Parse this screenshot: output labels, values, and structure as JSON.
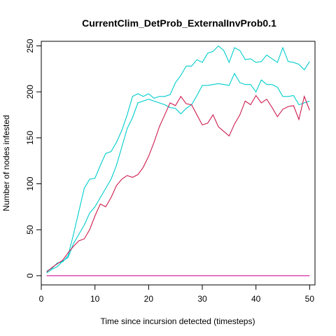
{
  "chart_data": {
    "type": "line",
    "title": "CurrentClim_DetProb_ExternalInvProb0.1",
    "xlabel": "Time since incursion detected (timesteps)",
    "ylabel": "Number of nodes infested",
    "xlim": [
      0,
      51
    ],
    "ylim": [
      -10,
      255
    ],
    "xticks": [
      0,
      10,
      20,
      30,
      40,
      50
    ],
    "yticks": [
      0,
      50,
      100,
      150,
      200,
      250
    ],
    "grid": false,
    "legend": "none",
    "x": [
      1,
      2,
      3,
      4,
      5,
      6,
      7,
      8,
      9,
      10,
      11,
      12,
      13,
      14,
      15,
      16,
      17,
      18,
      19,
      20,
      21,
      22,
      23,
      24,
      25,
      26,
      27,
      28,
      29,
      30,
      31,
      32,
      33,
      34,
      35,
      36,
      37,
      38,
      39,
      40,
      41,
      42,
      43,
      44,
      45,
      46,
      47,
      48,
      49,
      50
    ],
    "series": [
      {
        "color": "#00CDCD",
        "values": [
          5,
          8,
          14,
          15,
          22,
          45,
          70,
          95,
          105,
          106,
          120,
          133,
          135,
          145,
          158,
          175,
          195,
          198,
          195,
          198,
          193,
          195,
          195,
          197,
          210,
          218,
          228,
          228,
          235,
          232,
          242,
          244,
          250,
          245,
          232,
          248,
          245,
          235,
          236,
          232,
          233,
          240,
          236,
          232,
          248,
          233,
          232,
          230,
          224,
          233
        ]
      },
      {
        "color": "#00CDCD",
        "values": [
          3,
          7,
          10,
          16,
          20,
          35,
          45,
          55,
          68,
          75,
          85,
          95,
          105,
          120,
          140,
          160,
          172,
          188,
          190,
          192,
          190,
          188,
          186,
          183,
          182,
          176,
          182,
          186,
          196,
          207,
          207,
          208,
          209,
          208,
          207,
          220,
          210,
          208,
          208,
          200,
          213,
          208,
          208,
          205,
          195,
          195,
          196,
          186,
          188,
          190
        ]
      },
      {
        "color": "#CD1C4E",
        "values": [
          4,
          9,
          13,
          17,
          25,
          32,
          38,
          40,
          50,
          65,
          78,
          75,
          85,
          98,
          105,
          109,
          107,
          110,
          118,
          130,
          145,
          162,
          175,
          188,
          185,
          195,
          187,
          186,
          175,
          164,
          166,
          175,
          162,
          157,
          152,
          165,
          175,
          190,
          186,
          196,
          188,
          192,
          183,
          173,
          181,
          184,
          185,
          170,
          195,
          180
        ]
      },
      {
        "color": "#A020F0",
        "values": [
          0,
          0,
          0,
          0,
          0,
          0,
          0,
          0,
          0,
          0,
          0,
          0,
          0,
          0,
          0,
          0,
          0,
          0,
          0,
          0,
          0,
          0,
          0,
          0,
          0,
          0,
          0,
          0,
          0,
          0,
          0,
          0,
          0,
          0,
          0,
          0,
          0,
          0,
          0,
          0,
          0,
          0,
          0,
          0,
          0,
          0,
          0,
          0,
          0,
          0
        ]
      },
      {
        "color": "#DD1D8F",
        "values": [
          0,
          0,
          0,
          0,
          0,
          0,
          0,
          0,
          0,
          0,
          0,
          0,
          0,
          0,
          0,
          0,
          0,
          0,
          0,
          0,
          0,
          0,
          0,
          0,
          0,
          0,
          0,
          0,
          0,
          0,
          0,
          0,
          0,
          0,
          0,
          0,
          0,
          0,
          0,
          0,
          0,
          0,
          0,
          0,
          0,
          0,
          0,
          0,
          0,
          0
        ]
      }
    ]
  }
}
